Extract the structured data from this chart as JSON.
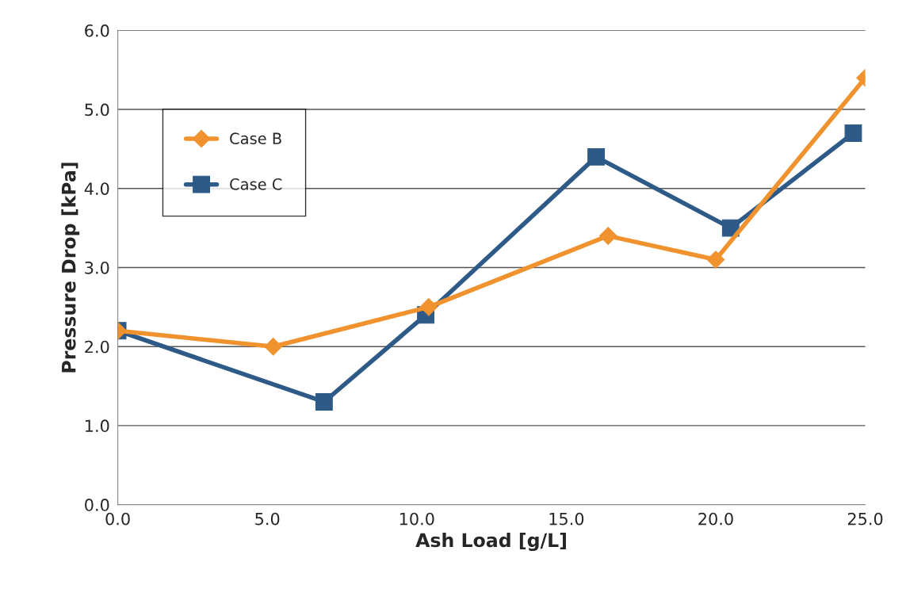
{
  "chart_data": {
    "type": "line",
    "xlabel": "Ash Load [g/L]",
    "ylabel": "Pressure Drop [kPa]",
    "xlim": [
      0,
      25
    ],
    "xticks": [
      {
        "value": 0,
        "label": "0.0"
      },
      {
        "value": 5,
        "label": "5.0"
      },
      {
        "value": 10,
        "label": "10.0"
      },
      {
        "value": 15,
        "label": "15.0"
      },
      {
        "value": 20,
        "label": "20.0"
      },
      {
        "value": 25,
        "label": "25.0"
      }
    ],
    "ylim": [
      0,
      6
    ],
    "yticks": [
      {
        "value": 0,
        "label": "0.0"
      },
      {
        "value": 1,
        "label": "1.0"
      },
      {
        "value": 2,
        "label": "2.0"
      },
      {
        "value": 3,
        "label": "3.0"
      },
      {
        "value": 4,
        "label": "4.0"
      },
      {
        "value": 5,
        "label": "5.0"
      },
      {
        "value": 6,
        "label": "6.0"
      }
    ],
    "grid": "y",
    "legend": "top left",
    "series": [
      {
        "name": "Case B",
        "color": "#f0922e",
        "marker": "diamond",
        "x": [
          0,
          5.2,
          10.4,
          16.4,
          20.0,
          25.0
        ],
        "values": [
          2.2,
          2.0,
          2.5,
          3.4,
          3.1,
          5.4
        ]
      },
      {
        "name": "Case C",
        "color": "#2e5a88",
        "marker": "square",
        "x": [
          0,
          6.9,
          10.3,
          16.0,
          20.5,
          24.6
        ],
        "values": [
          2.2,
          1.3,
          2.4,
          4.4,
          3.5,
          4.7
        ]
      }
    ]
  }
}
